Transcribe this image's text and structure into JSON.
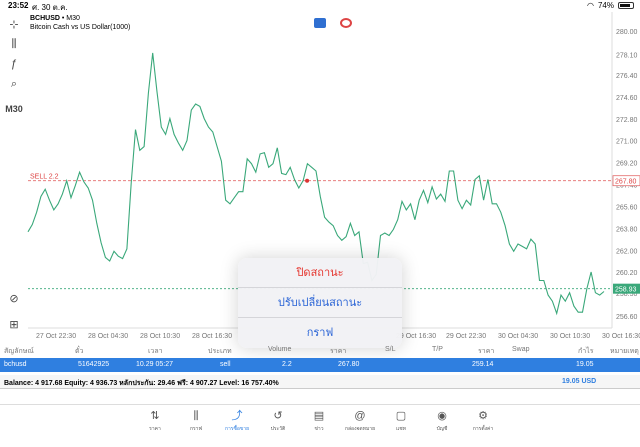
{
  "status": {
    "time": "23:52",
    "date": "ศ. 30 ต.ค.",
    "battery": "74%"
  },
  "toolbar": {
    "items": [
      {
        "name": "crosshair-icon",
        "glyph": "⊹"
      },
      {
        "name": "candles-icon",
        "glyph": "⫼"
      },
      {
        "name": "indicator-f-icon",
        "glyph": "ƒ"
      },
      {
        "name": "objects-icon",
        "glyph": "⌕"
      }
    ],
    "timeframe": "M30"
  },
  "chart_header": {
    "symbol": "BCHUSD",
    "sep": " • ",
    "timeframe": "M30",
    "description": "Bitcoin Cash vs US Dollar(1000)"
  },
  "chart_data": {
    "type": "line",
    "y_ticks": [
      "280.00",
      "278.10",
      "276.40",
      "274.60",
      "272.80",
      "271.00",
      "269.20",
      "267.40",
      "265.60",
      "263.80",
      "262.00",
      "260.20",
      "258.50",
      "256.60"
    ],
    "y_min": 255.7,
    "y_max": 281.0,
    "x_ticks": [
      "27 Oct 22:30",
      "28 Oct 04:30",
      "28 Oct 10:30",
      "28 Oct 16:30",
      "29 Oct 16:30",
      "29 Oct 22:30",
      "30 Oct 04:30",
      "30 Oct 10:30",
      "30 Oct 16:30"
    ],
    "sell_line": {
      "label": "SELL 2.2",
      "value": 267.8
    },
    "bid_line": {
      "value": 258.93
    },
    "order_marker": 267.8,
    "line_color": "#3aa87a",
    "values": [
      263.6,
      264.2,
      265.2,
      266.5,
      267.1,
      266.2,
      265.4,
      265.9,
      266.7,
      267.8,
      266.4,
      267.4,
      268.5,
      267.7,
      267.2,
      266.2,
      264.3,
      262.7,
      261.5,
      261.2,
      262.0,
      261.6,
      261.4,
      262.2,
      267.6,
      272.0,
      270.3,
      270.6,
      275.0,
      278.3,
      275.1,
      272.2,
      271.6,
      272.9,
      271.6,
      270.9,
      270.3,
      271.1,
      273.6,
      274.1,
      273.9,
      272.9,
      272.2,
      271.8,
      270.6,
      269.4,
      266.2,
      265.9,
      266.4,
      266.9,
      266.9,
      269.6,
      269.2,
      268.5,
      270.0,
      270.1,
      268.9,
      269.2,
      270.5,
      268.4,
      268.3,
      268.9,
      267.9,
      267.2,
      267.8,
      269.2,
      268.9,
      268.6,
      266.5,
      264.8,
      264.4,
      264.1,
      263.3,
      262.9,
      263.2,
      264.3,
      263.3,
      263.6,
      261.0,
      261.1,
      259.6,
      260.1,
      263.3,
      263.5,
      263.3,
      263.8,
      264.6,
      266.1,
      265.4,
      265.9,
      264.6,
      266.2,
      267.0,
      266.0,
      267.3,
      266.3,
      266.7,
      266.1,
      268.6,
      268.6,
      266.2,
      265.5,
      266.2,
      265.8,
      267.9,
      268.2,
      266.2,
      267.9,
      265.9,
      265.9,
      265.2,
      264.1,
      262.6,
      262.0,
      262.6,
      262.4,
      262.2,
      263.0,
      262.6,
      259.6,
      259.6,
      258.4,
      257.9,
      256.9,
      258.4,
      257.9,
      258.6,
      257.5,
      257.0,
      257.0,
      258.9,
      260.3,
      258.6,
      258.4,
      258.7
    ]
  },
  "popup": {
    "close": "ปิดสถานะ",
    "modify": "ปรับเปลี่ยนสถานะ",
    "chart": "กราฟ"
  },
  "table": {
    "headers": [
      "สัญลักษณ์",
      "ตั๋ว",
      "เวลา",
      "ประเภท",
      "Volume",
      "ราคา",
      "S/L",
      "T/P",
      "ราคา",
      "Swap",
      "กำไร",
      "หมายเหตุ"
    ],
    "row": {
      "symbol": "bchusd",
      "ticket": "51642925",
      "time": "10.29 05:27",
      "type": "sell",
      "volume": "2.2",
      "open_price": "267.80",
      "price": "259.14",
      "profit": "19.05"
    }
  },
  "balance": {
    "text": "Balance: 4 917.68 Equity: 4 936.73 หลักประกัน: 29.46 ฟรี: 4 907.27 Level: 16 757.40%",
    "total": "19.05  USD"
  },
  "tabs": [
    {
      "name": "quotes",
      "label": "ราคา",
      "glyph": "⇅"
    },
    {
      "name": "chart",
      "label": "กราฟ",
      "glyph": "⫼"
    },
    {
      "name": "trade",
      "label": "การซื้อขาย",
      "glyph": "⤴"
    },
    {
      "name": "history",
      "label": "ประวัติ",
      "glyph": "↺"
    },
    {
      "name": "news",
      "label": "ข่าว",
      "glyph": "▤"
    },
    {
      "name": "mailbox",
      "label": "กล่องจดหมาย",
      "glyph": "@"
    },
    {
      "name": "chat",
      "label": "แชท",
      "glyph": "▢"
    },
    {
      "name": "accounts",
      "label": "บัญชี",
      "glyph": "◉"
    },
    {
      "name": "settings",
      "label": "การตั้งค่า",
      "glyph": "⚙"
    }
  ],
  "active_tab": "trade"
}
